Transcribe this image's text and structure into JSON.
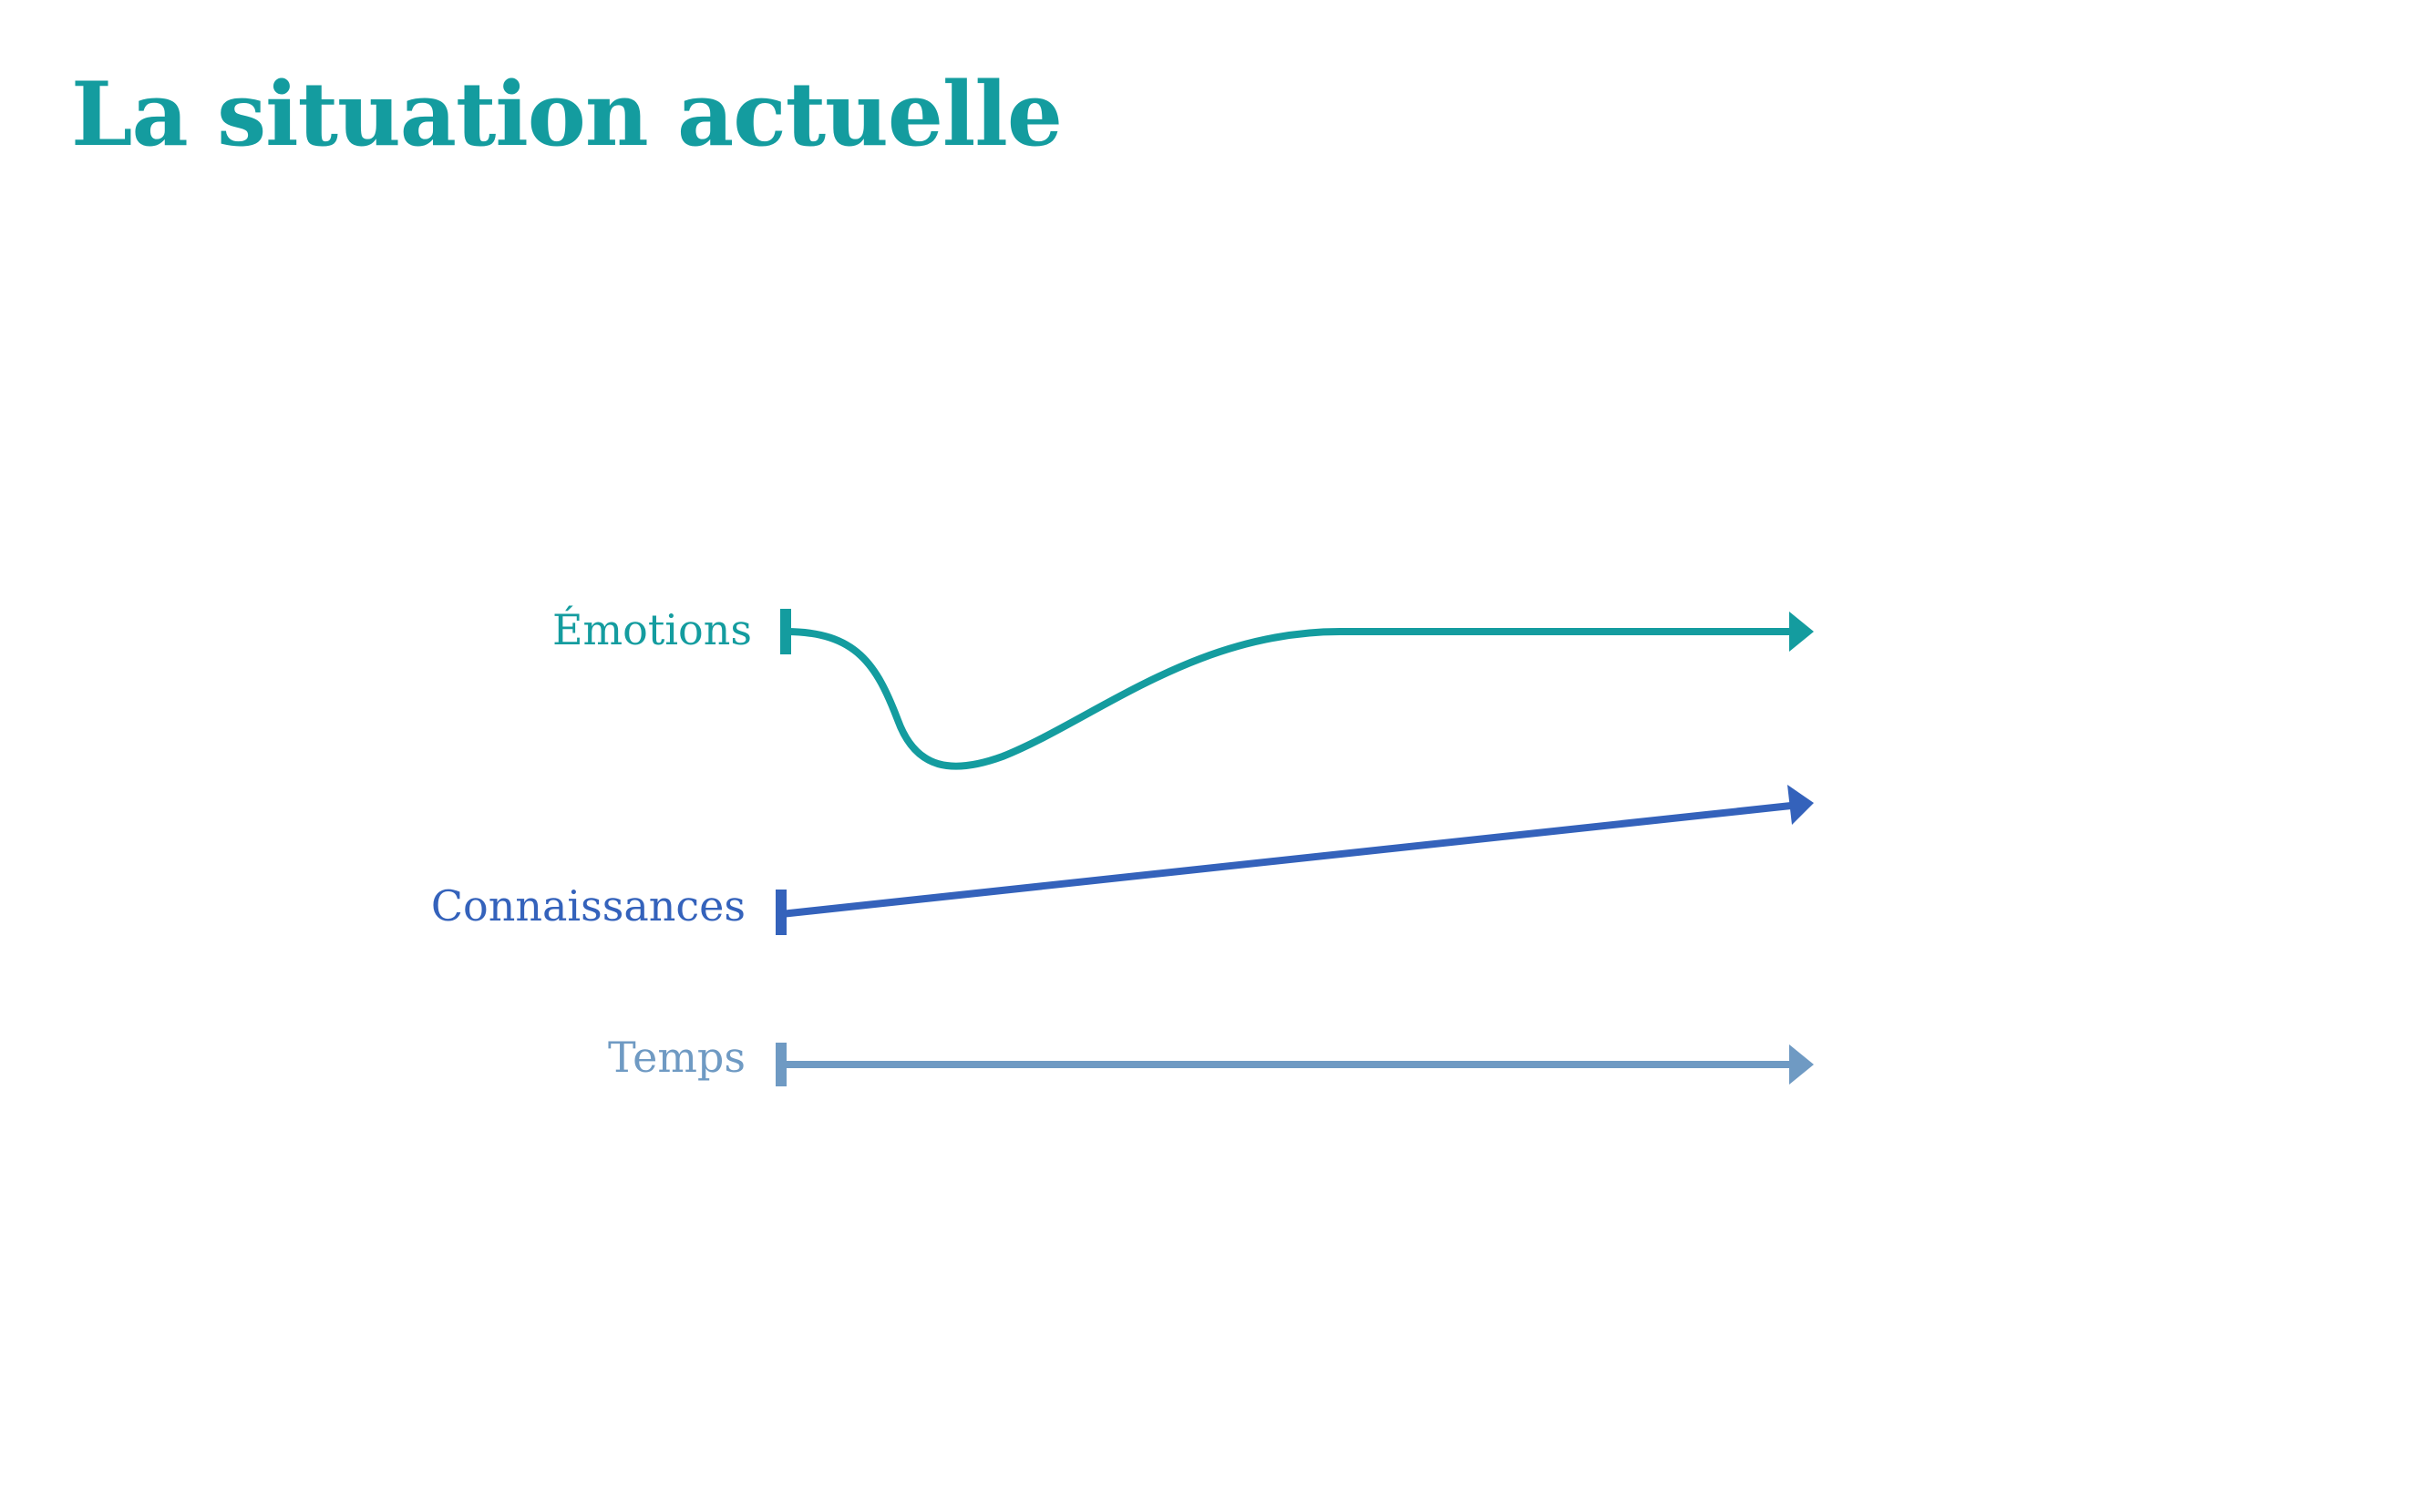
{
  "title": "La situation actuelle",
  "colors": {
    "emotions": "#149c9f",
    "connaissances": "#3462bb",
    "temps": "#6f9ac3",
    "title": "#149c9f",
    "background": "#ffffff"
  },
  "rows": [
    {
      "id": "emotions",
      "label": "Émotions",
      "trend": "dip then rise, then flat"
    },
    {
      "id": "connaissances",
      "label": "Connaissances",
      "trend": "steady increase"
    },
    {
      "id": "temps",
      "label": "Temps",
      "trend": "constant"
    }
  ]
}
